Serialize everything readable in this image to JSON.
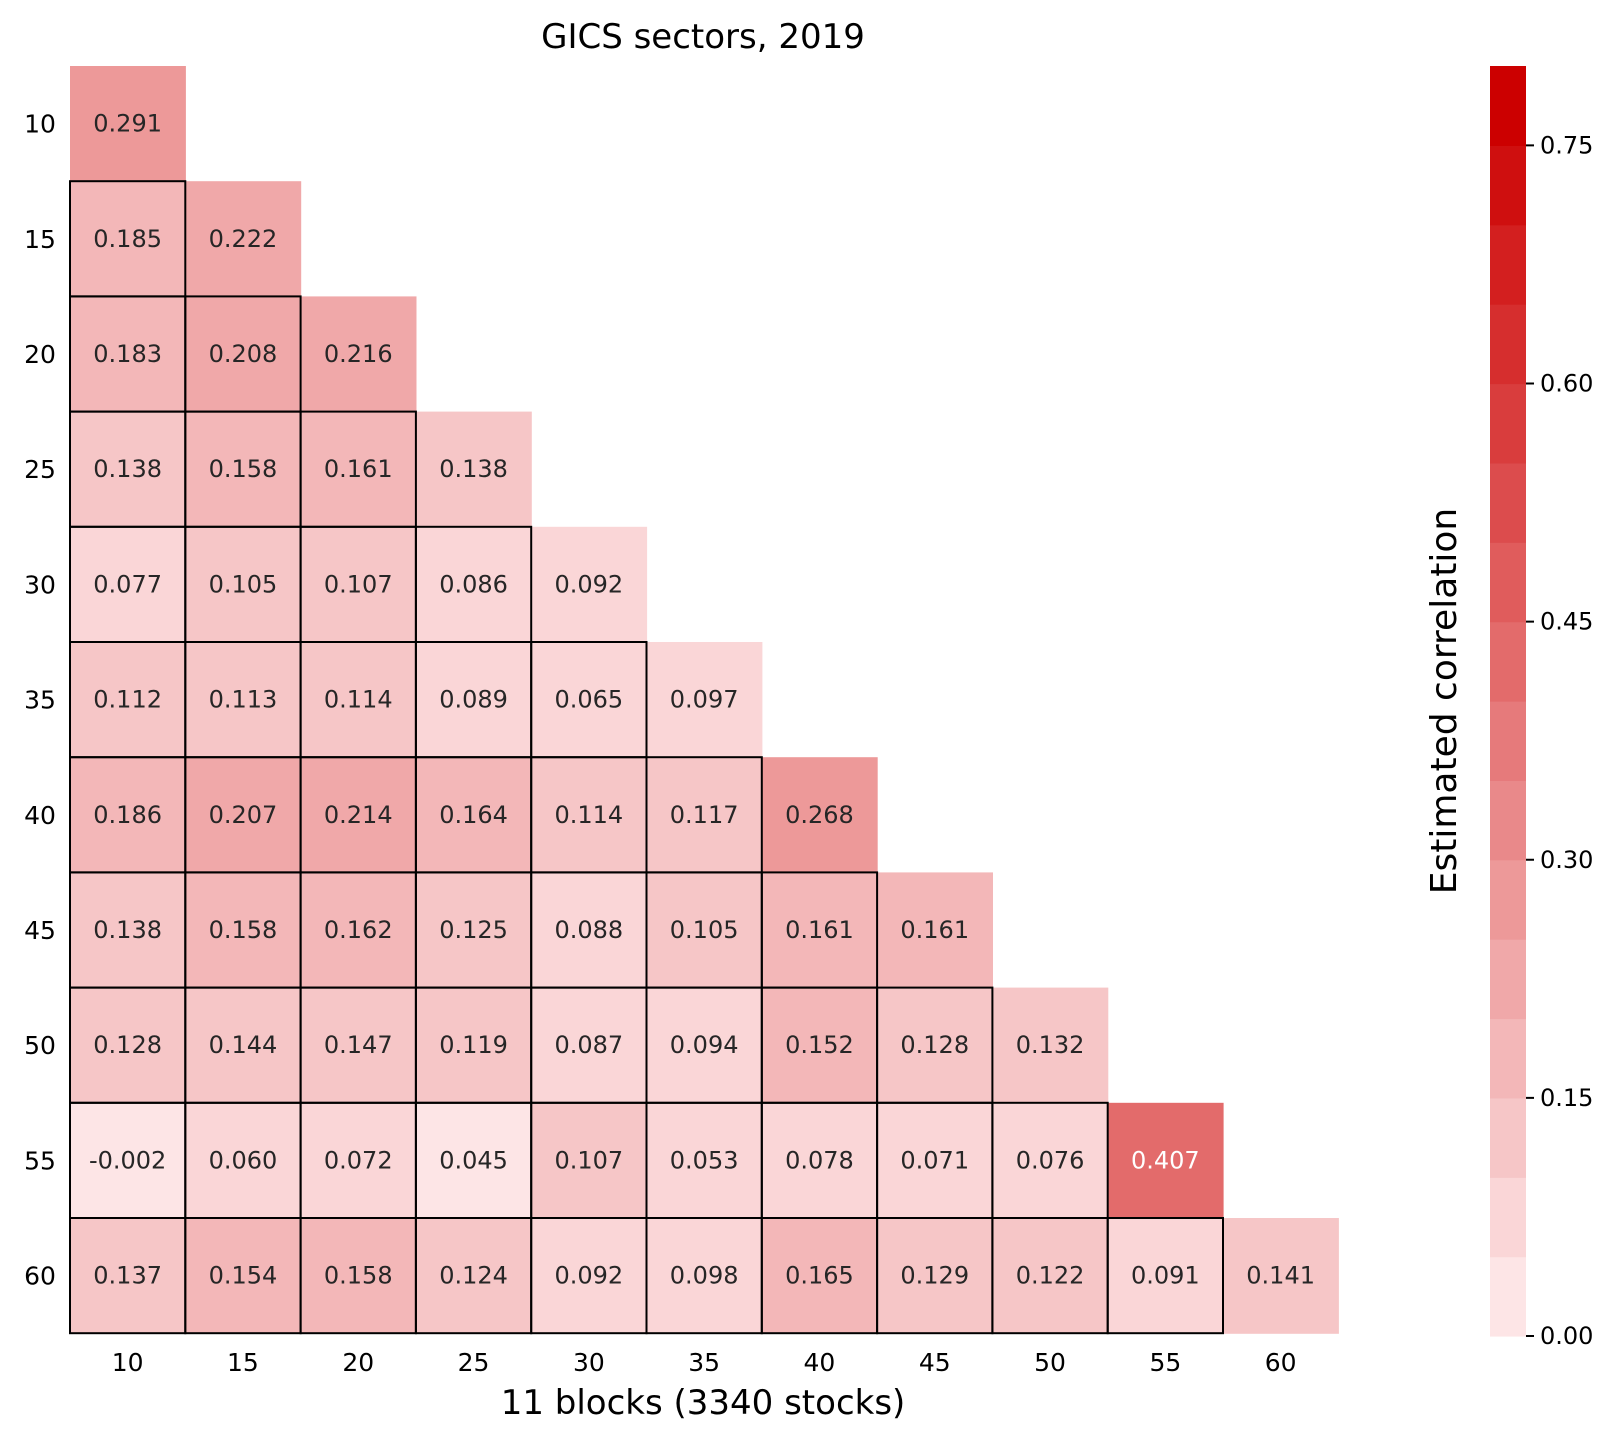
{
  "chart_data": {
    "type": "heatmap",
    "title": "GICS sectors, 2019",
    "xlabel": "11 blocks (3340 stocks)",
    "ylabel": "",
    "categories": [
      "10",
      "15",
      "20",
      "25",
      "30",
      "35",
      "40",
      "45",
      "50",
      "55",
      "60"
    ],
    "matrix": [
      [
        0.291
      ],
      [
        0.185,
        0.222
      ],
      [
        0.183,
        0.208,
        0.216
      ],
      [
        0.138,
        0.158,
        0.161,
        0.138
      ],
      [
        0.077,
        0.105,
        0.107,
        0.086,
        0.092
      ],
      [
        0.112,
        0.113,
        0.114,
        0.089,
        0.065,
        0.097
      ],
      [
        0.186,
        0.207,
        0.214,
        0.164,
        0.114,
        0.117,
        0.268
      ],
      [
        0.138,
        0.158,
        0.162,
        0.125,
        0.088,
        0.105,
        0.161,
        0.161
      ],
      [
        0.128,
        0.144,
        0.147,
        0.119,
        0.087,
        0.094,
        0.152,
        0.128,
        0.132
      ],
      [
        -0.002,
        0.06,
        0.072,
        0.045,
        0.107,
        0.053,
        0.078,
        0.071,
        0.076,
        0.407
      ],
      [
        0.137,
        0.154,
        0.158,
        0.124,
        0.092,
        0.098,
        0.165,
        0.129,
        0.122,
        0.091,
        0.141
      ]
    ],
    "labels": [
      [
        "0.291"
      ],
      [
        "0.185",
        "0.222"
      ],
      [
        "0.183",
        "0.208",
        "0.216"
      ],
      [
        "0.138",
        "0.158",
        "0.161",
        "0.138"
      ],
      [
        "0.077",
        "0.105",
        "0.107",
        "0.086",
        "0.092"
      ],
      [
        "0.112",
        "0.113",
        "0.114",
        "0.089",
        "0.065",
        "0.097"
      ],
      [
        "0.186",
        "0.207",
        "0.214",
        "0.164",
        "0.114",
        "0.117",
        "0.268"
      ],
      [
        "0.138",
        "0.158",
        "0.162",
        "0.125",
        "0.088",
        "0.105",
        "0.161",
        "0.161"
      ],
      [
        "0.128",
        "0.144",
        "0.147",
        "0.119",
        "0.087",
        "0.094",
        "0.152",
        "0.128",
        "0.132"
      ],
      [
        "-0.002",
        "0.060",
        "0.072",
        "0.045",
        "0.107",
        "0.053",
        "0.078",
        "0.071",
        "0.076",
        "0.407"
      ],
      [
        "0.137",
        "0.154",
        "0.158",
        "0.124",
        "0.092",
        "0.098",
        "0.165",
        "0.129",
        "0.122",
        "0.091",
        "0.141"
      ]
    ],
    "colorbar": {
      "label": "Estimated correlation",
      "range": [
        0,
        0.8
      ],
      "bins": 16,
      "ticks": [
        0.0,
        0.15,
        0.3,
        0.45,
        0.6,
        0.75
      ],
      "tick_labels": [
        "0.00",
        "0.15",
        "0.30",
        "0.45",
        "0.60",
        "0.75"
      ],
      "color_low": "#fde5e6",
      "color_high": "#cc0000"
    },
    "block_outline_color": "#000000",
    "text_color_dark": "#262626",
    "text_color_light": "#ffffff"
  }
}
